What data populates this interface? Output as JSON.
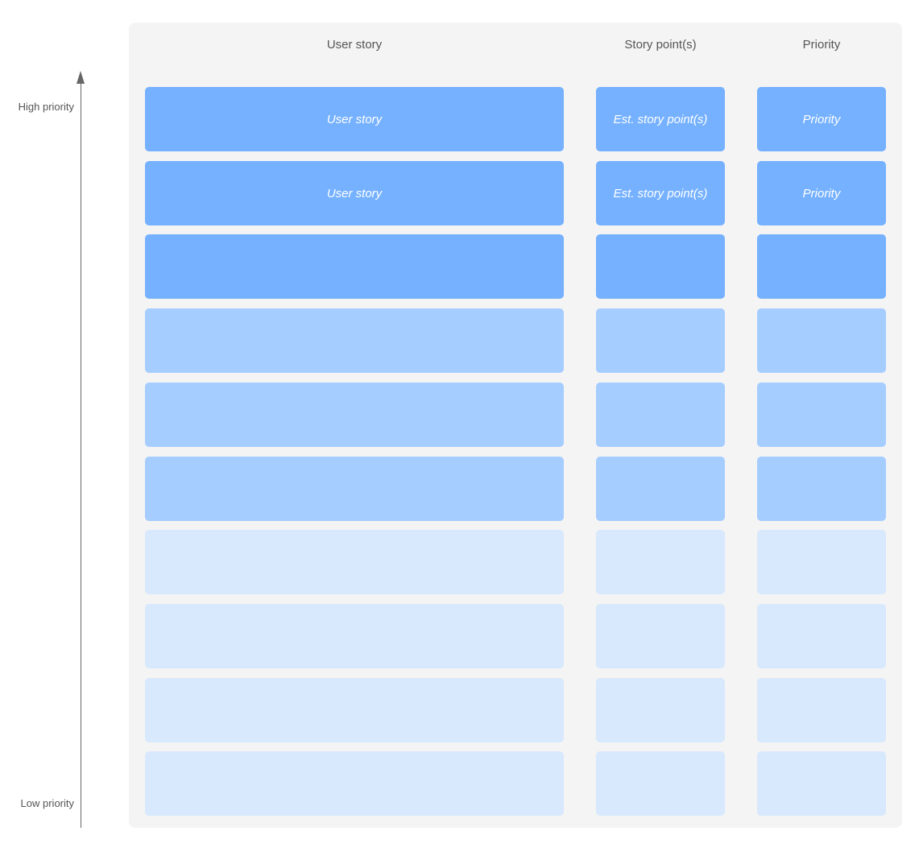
{
  "headers": {
    "story": "User story",
    "points": "Story point(s)",
    "priority": "Priority"
  },
  "axis": {
    "high_label": "High priority",
    "low_label": "Low priority"
  },
  "colors": {
    "high": "#75b1ff",
    "medium": "#a6cdff",
    "low": "#d8e8fd",
    "panel": "#f4f4f4"
  },
  "rows": [
    {
      "tier": "high",
      "story": "User story",
      "points": "Est. story point(s)",
      "priority": "Priority"
    },
    {
      "tier": "high",
      "story": "User story",
      "points": "Est. story point(s)",
      "priority": "Priority"
    },
    {
      "tier": "high",
      "story": "",
      "points": "",
      "priority": ""
    },
    {
      "tier": "medium",
      "story": "",
      "points": "",
      "priority": ""
    },
    {
      "tier": "medium",
      "story": "",
      "points": "",
      "priority": ""
    },
    {
      "tier": "medium",
      "story": "",
      "points": "",
      "priority": ""
    },
    {
      "tier": "low",
      "story": "",
      "points": "",
      "priority": ""
    },
    {
      "tier": "low",
      "story": "",
      "points": "",
      "priority": ""
    },
    {
      "tier": "low",
      "story": "",
      "points": "",
      "priority": ""
    },
    {
      "tier": "low",
      "story": "",
      "points": "",
      "priority": ""
    }
  ]
}
